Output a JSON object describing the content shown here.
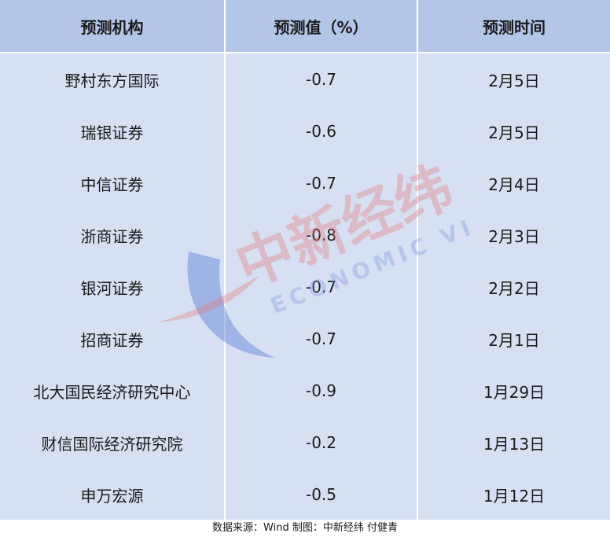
{
  "table": {
    "headers": [
      "预测机构",
      "预测值（%）",
      "预测时间"
    ],
    "rows": [
      [
        "野村东方国际",
        "-0.7",
        "2月5日"
      ],
      [
        "瑞银证券",
        "-0.6",
        "2月5日"
      ],
      [
        "中信证券",
        "-0.7",
        "2月4日"
      ],
      [
        "浙商证券",
        "-0.8",
        "2月3日"
      ],
      [
        "银河证券",
        "-0.7",
        "2月2日"
      ],
      [
        "招商证券",
        "-0.7",
        "2月1日"
      ],
      [
        "北大国民经济研究中心",
        "-0.9",
        "1月29日"
      ],
      [
        "财信国际经济研究院",
        "-0.2",
        "1月13日"
      ],
      [
        "申万宏源",
        "-0.5",
        "1月12日"
      ]
    ]
  },
  "footer": {
    "source": "数据来源：Wind 制图：中新经纬 付健青"
  },
  "watermark": {
    "chinese": "中新经纬",
    "english": "ECONOMIC VIEW"
  },
  "colors": {
    "header_bg": "#b4c6e7",
    "body_bg": "#d7e0f3",
    "grid": "#ffffff"
  }
}
